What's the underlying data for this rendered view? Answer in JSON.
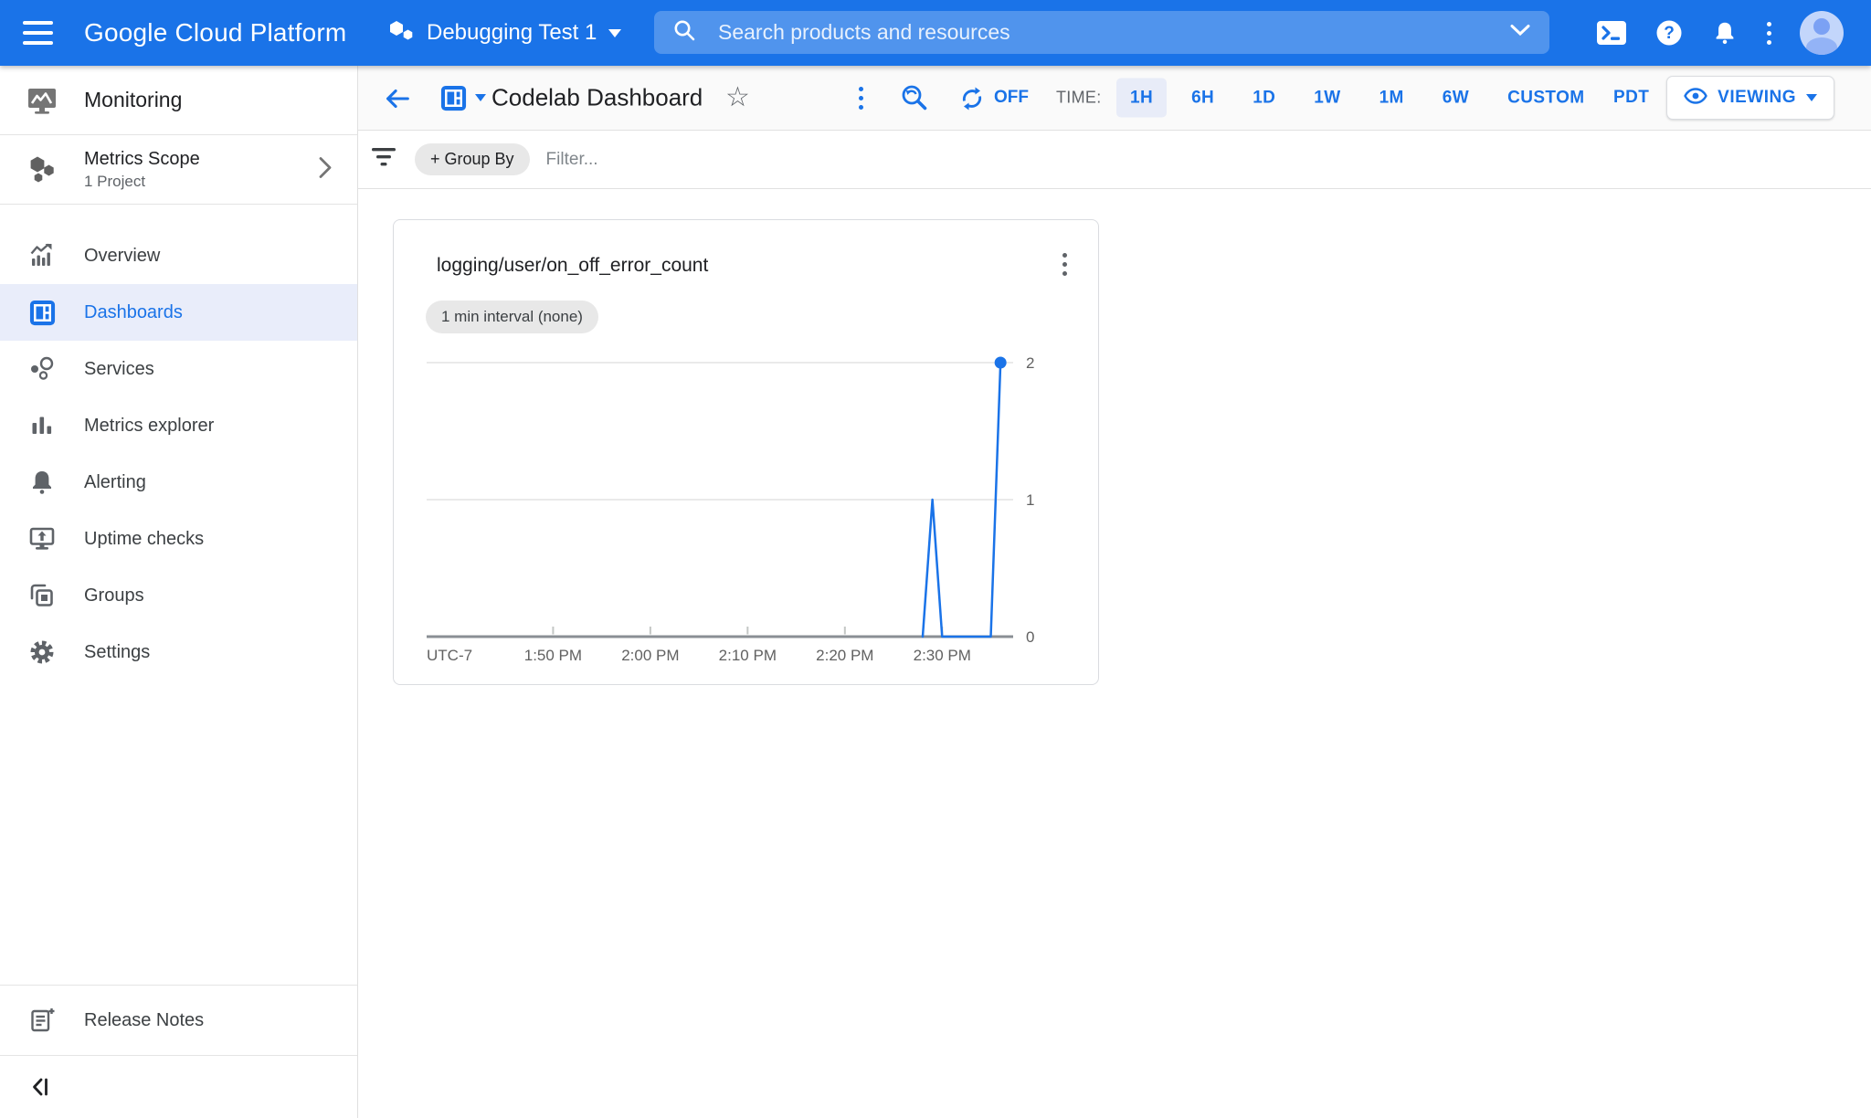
{
  "header": {
    "product_name": "Google Cloud Platform",
    "project_name": "Debugging Test 1",
    "search_placeholder": "Search products and resources"
  },
  "sidebar": {
    "product_name": "Monitoring",
    "metrics_scope": {
      "title": "Metrics Scope",
      "subtitle": "1 Project"
    },
    "items": [
      {
        "label": "Overview",
        "active": false
      },
      {
        "label": "Dashboards",
        "active": true
      },
      {
        "label": "Services",
        "active": false
      },
      {
        "label": "Metrics explorer",
        "active": false
      },
      {
        "label": "Alerting",
        "active": false
      },
      {
        "label": "Uptime checks",
        "active": false
      },
      {
        "label": "Groups",
        "active": false
      },
      {
        "label": "Settings",
        "active": false
      }
    ],
    "release_notes_label": "Release Notes"
  },
  "toolbar": {
    "dashboard_title": "Codelab Dashboard",
    "auto_refresh_label": "OFF",
    "time_label": "TIME:",
    "time_ranges": [
      "1H",
      "6H",
      "1D",
      "1W",
      "1M",
      "6W",
      "CUSTOM"
    ],
    "selected_range": "1H",
    "timezone_label": "PDT",
    "viewing_label": "VIEWING"
  },
  "filter_bar": {
    "group_by_label": "+ Group By",
    "filter_placeholder": "Filter..."
  },
  "card": {
    "interval_chip": "1 min interval (none)"
  },
  "chart_data": {
    "type": "line",
    "title": "logging/user/on_off_error_count",
    "timezone_label": "UTC-7",
    "x_tick_labels": [
      "1:50 PM",
      "2:00 PM",
      "2:10 PM",
      "2:20 PM",
      "2:30 PM"
    ],
    "x_range_minutes_rel_first_tick": [
      -13,
      47.3
    ],
    "y_ticks": [
      0,
      1,
      2
    ],
    "y_range": [
      0,
      2
    ],
    "grid_horizontal_only": true,
    "legend": "none",
    "series": [
      {
        "name": "logging/user/on_off_error_count",
        "color": "#1a73e8",
        "end_dot": true,
        "points": [
          {
            "time": "2:28 PM",
            "value": 0
          },
          {
            "time": "2:29 PM",
            "value": 1
          },
          {
            "time": "2:30 PM",
            "value": 0
          },
          {
            "time": "2:35 PM",
            "value": 0
          },
          {
            "time": "2:36 PM",
            "value": 2
          }
        ]
      }
    ]
  },
  "colors": {
    "header_bg": "#1a73e8",
    "accent": "#1a73e8",
    "selected_nav_bg": "#e9edfa",
    "selected_chip_bg": "#e8ecf8",
    "border": "#e0e0e0",
    "card_border": "#dadce0",
    "chip_bg": "#e8e8e8",
    "text_primary": "#202124",
    "text_secondary": "#5f6368",
    "axis_text": "#616161"
  }
}
